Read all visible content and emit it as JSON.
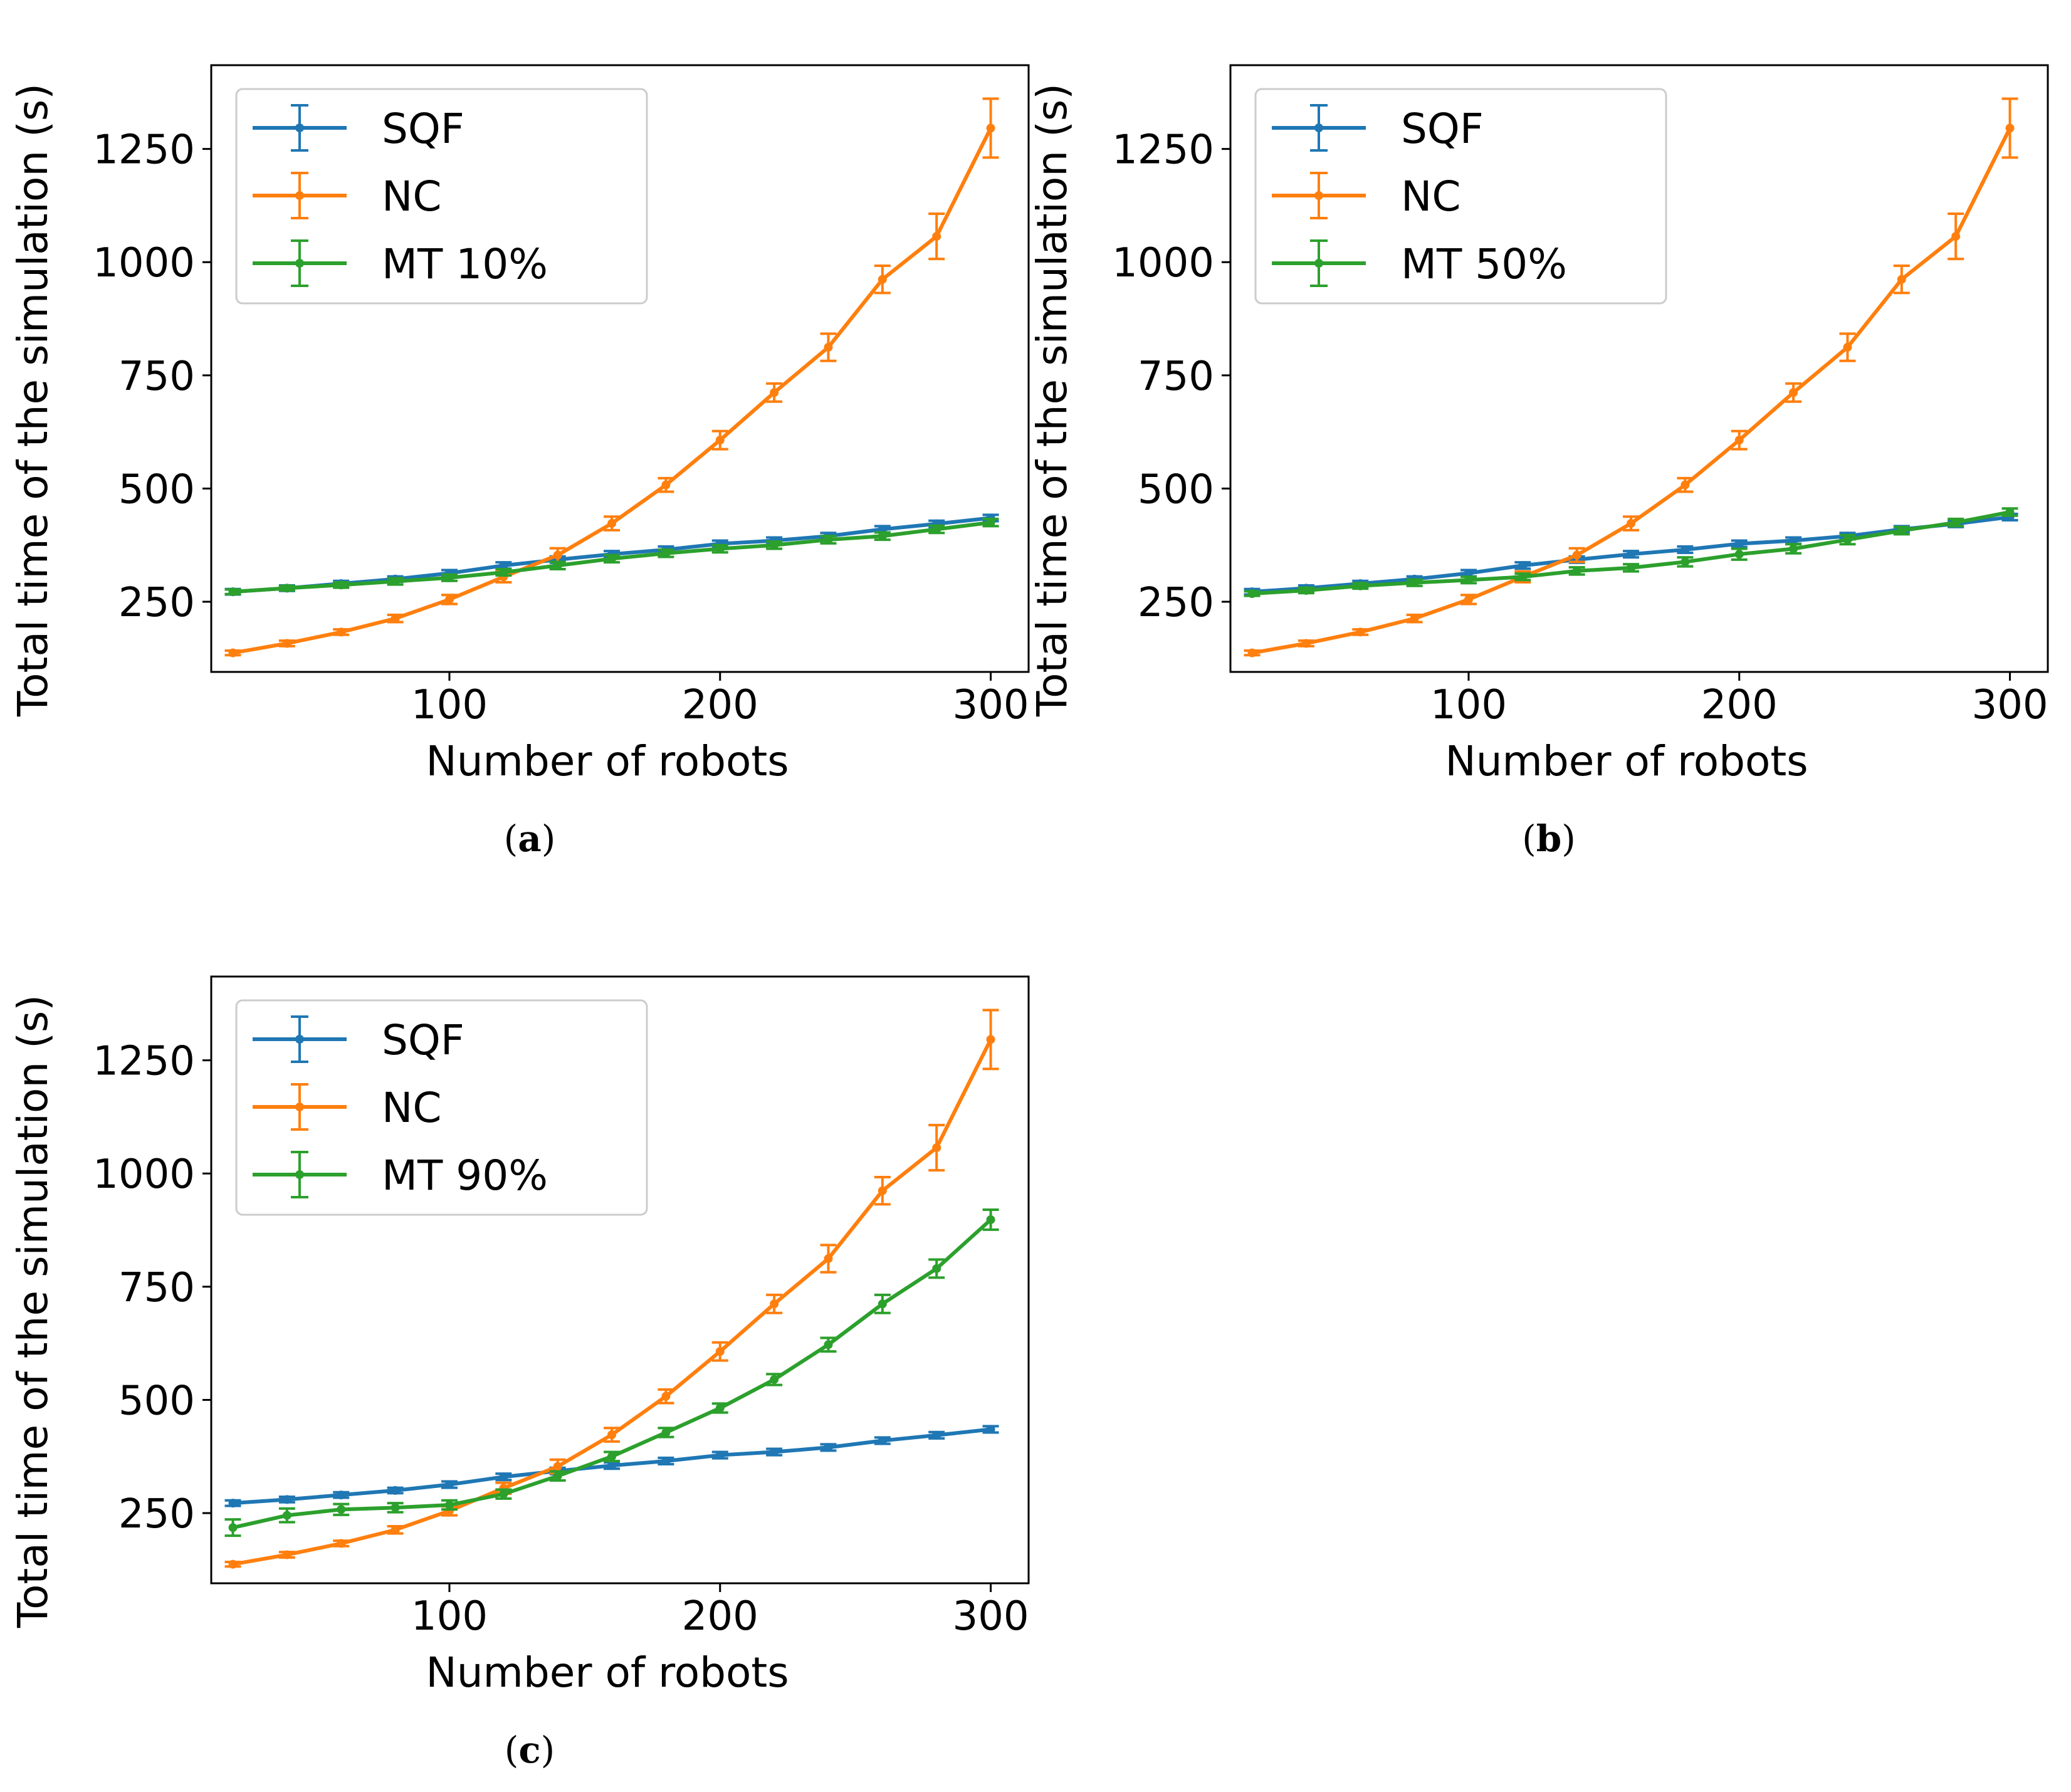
{
  "chart_data": [
    {
      "type": "line",
      "caption": "a",
      "xlabel": "Number of robots",
      "ylabel": "Total time of the simulation (s)",
      "xlim": [
        12,
        314
      ],
      "ylim": [
        95,
        1435
      ],
      "xticks": [
        100,
        200,
        300
      ],
      "yticks": [
        250,
        500,
        750,
        1000,
        1250
      ],
      "grid": false,
      "legend_position": "top-left",
      "x": [
        20,
        40,
        60,
        80,
        100,
        120,
        140,
        160,
        180,
        200,
        220,
        240,
        260,
        280,
        300
      ],
      "series": [
        {
          "name": "SQF",
          "color": "#1f77b4",
          "values": [
            272,
            280,
            290,
            300,
            313,
            330,
            343,
            355,
            365,
            378,
            385,
            395,
            410,
            422,
            435
          ],
          "errors": [
            6,
            6,
            6,
            6,
            7,
            7,
            7,
            7,
            7,
            7,
            7,
            7,
            7,
            7,
            7
          ]
        },
        {
          "name": "NC",
          "color": "#ff7f0e",
          "values": [
            137,
            158,
            183,
            213,
            255,
            305,
            353,
            423,
            508,
            607,
            712,
            812,
            962,
            1057,
            1296
          ],
          "errors": [
            5,
            6,
            6,
            8,
            10,
            12,
            15,
            15,
            15,
            20,
            20,
            30,
            30,
            50,
            65
          ]
        },
        {
          "name": "MT 10%",
          "color": "#2ca02c",
          "values": [
            272,
            280,
            287,
            295,
            303,
            315,
            330,
            345,
            357,
            367,
            375,
            387,
            395,
            410,
            425
          ],
          "errors": [
            5,
            5,
            6,
            7,
            7,
            7,
            8,
            8,
            8,
            8,
            8,
            8,
            8,
            8,
            8
          ]
        }
      ]
    },
    {
      "type": "line",
      "caption": "b",
      "xlabel": "Number of robots",
      "ylabel": "Total time of the simulation (s)",
      "xlim": [
        12,
        314
      ],
      "ylim": [
        95,
        1435
      ],
      "xticks": [
        100,
        200,
        300
      ],
      "yticks": [
        250,
        500,
        750,
        1000,
        1250
      ],
      "grid": false,
      "legend_position": "top-left",
      "x": [
        20,
        40,
        60,
        80,
        100,
        120,
        140,
        160,
        180,
        200,
        220,
        240,
        260,
        280,
        300
      ],
      "series": [
        {
          "name": "SQF",
          "color": "#1f77b4",
          "values": [
            272,
            280,
            290,
            300,
            313,
            330,
            343,
            355,
            365,
            378,
            385,
            395,
            410,
            422,
            437
          ],
          "errors": [
            6,
            6,
            6,
            6,
            7,
            7,
            7,
            7,
            7,
            7,
            7,
            7,
            7,
            7,
            7
          ]
        },
        {
          "name": "NC",
          "color": "#ff7f0e",
          "values": [
            137,
            158,
            183,
            213,
            255,
            305,
            353,
            423,
            508,
            607,
            712,
            812,
            962,
            1057,
            1296
          ],
          "errors": [
            5,
            6,
            6,
            8,
            10,
            12,
            15,
            15,
            15,
            20,
            20,
            30,
            30,
            50,
            65
          ]
        },
        {
          "name": "MT 50%",
          "color": "#2ca02c",
          "values": [
            268,
            275,
            285,
            292,
            298,
            305,
            318,
            325,
            338,
            355,
            367,
            387,
            407,
            425,
            448
          ],
          "errors": [
            5,
            6,
            6,
            7,
            7,
            7,
            8,
            8,
            10,
            12,
            10,
            10,
            8,
            8,
            8
          ]
        }
      ]
    },
    {
      "type": "line",
      "caption": "c",
      "xlabel": "Number of robots",
      "ylabel": "Total time of the simulation (s)",
      "xlim": [
        12,
        314
      ],
      "ylim": [
        95,
        1435
      ],
      "xticks": [
        100,
        200,
        300
      ],
      "yticks": [
        250,
        500,
        750,
        1000,
        1250
      ],
      "grid": false,
      "legend_position": "top-left",
      "x": [
        20,
        40,
        60,
        80,
        100,
        120,
        140,
        160,
        180,
        200,
        220,
        240,
        260,
        280,
        300
      ],
      "series": [
        {
          "name": "SQF",
          "color": "#1f77b4",
          "values": [
            272,
            280,
            290,
            300,
            313,
            330,
            343,
            355,
            365,
            378,
            385,
            395,
            410,
            422,
            435
          ],
          "errors": [
            6,
            6,
            6,
            6,
            7,
            7,
            7,
            7,
            7,
            7,
            7,
            7,
            7,
            7,
            7
          ]
        },
        {
          "name": "NC",
          "color": "#ff7f0e",
          "values": [
            137,
            158,
            183,
            213,
            255,
            305,
            353,
            423,
            508,
            607,
            712,
            812,
            962,
            1057,
            1296
          ],
          "errors": [
            5,
            6,
            6,
            8,
            10,
            12,
            15,
            15,
            15,
            20,
            20,
            30,
            30,
            50,
            65
          ]
        },
        {
          "name": "MT 90%",
          "color": "#2ca02c",
          "values": [
            218,
            245,
            258,
            262,
            268,
            292,
            332,
            375,
            428,
            482,
            545,
            622,
            712,
            790,
            898
          ],
          "errors": [
            18,
            15,
            12,
            10,
            10,
            10,
            10,
            10,
            10,
            10,
            12,
            15,
            20,
            20,
            22
          ]
        }
      ]
    }
  ]
}
